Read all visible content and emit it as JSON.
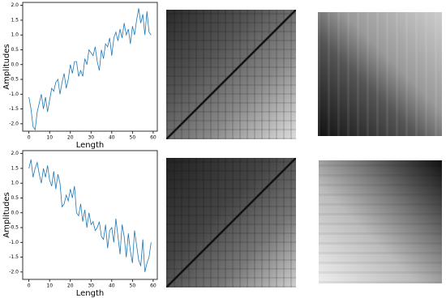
{
  "chart_data": [
    {
      "type": "line",
      "xlabel": "Length",
      "ylabel": "Amplitudes",
      "color": "#1f77b4",
      "x": [
        0,
        1,
        2,
        3,
        4,
        5,
        6,
        7,
        8,
        9,
        10,
        11,
        12,
        13,
        14,
        15,
        16,
        17,
        18,
        19,
        20,
        21,
        22,
        23,
        24,
        25,
        26,
        27,
        28,
        29,
        30,
        31,
        32,
        33,
        34,
        35,
        36,
        37,
        38,
        39,
        40,
        41,
        42,
        43,
        44,
        45,
        46,
        47,
        48,
        49,
        50,
        51,
        52,
        53,
        54,
        55,
        56,
        57,
        58,
        59
      ],
      "values": [
        -1.1,
        -1.5,
        -2.1,
        -2.2,
        -1.6,
        -1.3,
        -1.0,
        -1.5,
        -1.1,
        -1.6,
        -1.2,
        -0.8,
        -0.9,
        -0.6,
        -0.5,
        -1.0,
        -0.6,
        -0.3,
        -0.8,
        -0.5,
        0.0,
        -0.3,
        0.1,
        0.1,
        -0.4,
        -0.2,
        -0.4,
        0.2,
        0.0,
        0.5,
        0.4,
        0.3,
        0.6,
        0.1,
        -0.2,
        0.5,
        0.2,
        0.7,
        0.6,
        0.9,
        0.3,
        0.9,
        1.1,
        0.8,
        1.2,
        0.9,
        1.4,
        1.0,
        1.2,
        0.7,
        1.3,
        1.0,
        1.5,
        1.9,
        1.4,
        1.7,
        1.0,
        1.8,
        1.1,
        1.0
      ],
      "xlim": [
        -3,
        62
      ],
      "xticks": [
        0,
        10,
        20,
        30,
        40,
        50,
        60
      ],
      "ylim": [
        -2.25,
        2.1
      ],
      "yticks": [
        {
          "value": -2,
          "label": "-2.0"
        },
        -1.5,
        {
          "value": -1,
          "label": "-1.0"
        },
        -0.5,
        {
          "value": 0,
          "label": "0.0"
        },
        0.5,
        {
          "value": 1,
          "label": "1.0"
        },
        1.5,
        {
          "value": 2,
          "label": "2.0"
        }
      ]
    },
    {
      "type": "line",
      "xlabel": "Length",
      "ylabel": "Amplitudes",
      "color": "#1f77b4",
      "x": [
        0,
        1,
        2,
        3,
        4,
        5,
        6,
        7,
        8,
        9,
        10,
        11,
        12,
        13,
        14,
        15,
        16,
        17,
        18,
        19,
        20,
        21,
        22,
        23,
        24,
        25,
        26,
        27,
        28,
        29,
        30,
        31,
        32,
        33,
        34,
        35,
        36,
        37,
        38,
        39,
        40,
        41,
        42,
        43,
        44,
        45,
        46,
        47,
        48,
        49,
        50,
        51,
        52,
        53,
        54,
        55,
        56,
        57,
        58,
        59
      ],
      "values": [
        1.5,
        1.8,
        1.2,
        1.5,
        1.7,
        1.3,
        1.0,
        1.5,
        1.2,
        1.6,
        1.1,
        0.9,
        1.4,
        0.8,
        1.3,
        1.0,
        0.2,
        0.3,
        0.6,
        0.4,
        0.8,
        0.5,
        0.9,
        0.0,
        -0.1,
        0.3,
        -0.3,
        0.1,
        -0.5,
        0.0,
        -0.4,
        -0.3,
        -0.6,
        -0.5,
        -0.3,
        -0.8,
        -0.9,
        -0.4,
        -1.2,
        -0.6,
        -0.5,
        -1.0,
        -0.2,
        -0.8,
        -1.4,
        -0.4,
        -0.8,
        -1.5,
        -0.7,
        -1.3,
        -1.7,
        -0.6,
        -1.1,
        -1.6,
        -1.8,
        -0.9,
        -2.0,
        -1.7,
        -1.5,
        -1.0
      ],
      "xlim": [
        -3,
        62
      ],
      "xticks": [
        0,
        10,
        20,
        30,
        40,
        50,
        60
      ],
      "ylim": [
        -2.25,
        2.1
      ],
      "yticks": [
        {
          "value": -2,
          "label": "-2.0"
        },
        -1.5,
        {
          "value": -1,
          "label": "-1.0"
        },
        -0.5,
        {
          "value": 0,
          "label": "0.0"
        },
        0.5,
        {
          "value": 1,
          "label": "1.0"
        },
        1.5,
        {
          "value": 2,
          "label": "2.0"
        }
      ]
    }
  ]
}
